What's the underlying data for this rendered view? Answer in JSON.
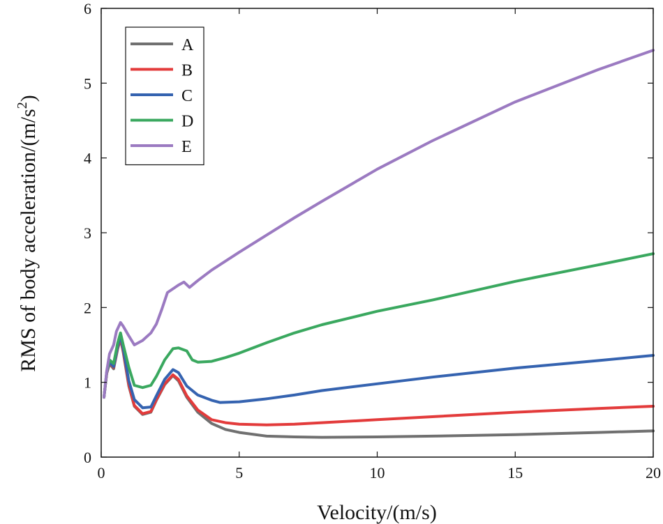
{
  "chart_data": {
    "type": "line",
    "xlabel": "Velocity/(m/s)",
    "ylabel_main": "RMS of body acceleration/(m/s",
    "ylabel_sup": "2",
    "ylabel_end": ")",
    "xlim": [
      0,
      20
    ],
    "ylim": [
      0,
      6
    ],
    "xticks": [
      "0",
      "5",
      "10",
      "15",
      "20"
    ],
    "yticks": [
      "0",
      "1",
      "2",
      "3",
      "4",
      "5",
      "6"
    ],
    "legend_position": "top-left",
    "series": [
      {
        "name": "A",
        "color": "#707070",
        "x": [
          0.1,
          0.2,
          0.3,
          0.45,
          0.6,
          0.7,
          0.8,
          1.0,
          1.2,
          1.5,
          1.8,
          2.0,
          2.3,
          2.6,
          2.8,
          3.1,
          3.5,
          4.0,
          4.5,
          5.0,
          6.0,
          7.0,
          8.0,
          10.0,
          12.0,
          15.0,
          18.0,
          20.0
        ],
        "y": [
          0.8,
          1.12,
          1.25,
          1.18,
          1.45,
          1.58,
          1.4,
          0.95,
          0.68,
          0.57,
          0.6,
          0.76,
          0.97,
          1.09,
          1.02,
          0.8,
          0.6,
          0.45,
          0.37,
          0.33,
          0.28,
          0.27,
          0.265,
          0.27,
          0.28,
          0.3,
          0.33,
          0.35
        ]
      },
      {
        "name": "B",
        "color": "#e33b3b",
        "x": [
          0.1,
          0.2,
          0.3,
          0.45,
          0.6,
          0.7,
          0.8,
          1.0,
          1.2,
          1.5,
          1.8,
          2.0,
          2.3,
          2.6,
          2.8,
          3.1,
          3.5,
          4.0,
          4.5,
          5.0,
          6.0,
          7.0,
          8.0,
          10.0,
          12.0,
          15.0,
          18.0,
          20.0
        ],
        "y": [
          0.8,
          1.12,
          1.26,
          1.2,
          1.47,
          1.6,
          1.42,
          0.97,
          0.69,
          0.58,
          0.61,
          0.77,
          0.98,
          1.1,
          1.04,
          0.82,
          0.63,
          0.5,
          0.46,
          0.44,
          0.43,
          0.44,
          0.46,
          0.5,
          0.54,
          0.6,
          0.65,
          0.68
        ]
      },
      {
        "name": "C",
        "color": "#3563b0",
        "x": [
          0.1,
          0.2,
          0.3,
          0.45,
          0.6,
          0.7,
          0.8,
          1.0,
          1.2,
          1.5,
          1.8,
          2.0,
          2.3,
          2.6,
          2.8,
          3.1,
          3.5,
          4.0,
          4.3,
          5.0,
          6.0,
          7.0,
          8.0,
          10.0,
          12.0,
          15.0,
          18.0,
          20.0
        ],
        "y": [
          0.8,
          1.13,
          1.27,
          1.21,
          1.49,
          1.62,
          1.45,
          1.02,
          0.77,
          0.66,
          0.67,
          0.82,
          1.04,
          1.17,
          1.13,
          0.95,
          0.83,
          0.76,
          0.73,
          0.74,
          0.78,
          0.83,
          0.89,
          0.98,
          1.07,
          1.19,
          1.29,
          1.36
        ]
      },
      {
        "name": "D",
        "color": "#3aa85f",
        "x": [
          0.1,
          0.2,
          0.3,
          0.45,
          0.6,
          0.7,
          0.8,
          1.0,
          1.2,
          1.5,
          1.8,
          2.0,
          2.3,
          2.6,
          2.8,
          3.1,
          3.3,
          3.5,
          4.0,
          4.5,
          5.0,
          6.0,
          7.0,
          8.0,
          10.0,
          12.0,
          15.0,
          18.0,
          20.0
        ],
        "y": [
          0.8,
          1.14,
          1.3,
          1.25,
          1.53,
          1.66,
          1.5,
          1.2,
          0.96,
          0.93,
          0.96,
          1.08,
          1.3,
          1.45,
          1.46,
          1.42,
          1.3,
          1.27,
          1.28,
          1.33,
          1.39,
          1.53,
          1.66,
          1.77,
          1.95,
          2.1,
          2.35,
          2.57,
          2.72
        ]
      },
      {
        "name": "E",
        "color": "#9b7ac1",
        "x": [
          0.1,
          0.2,
          0.3,
          0.45,
          0.55,
          0.7,
          0.8,
          1.0,
          1.2,
          1.5,
          1.8,
          2.0,
          2.2,
          2.4,
          2.6,
          2.8,
          3.0,
          3.2,
          3.5,
          4.0,
          4.5,
          5.0,
          6.0,
          7.0,
          8.0,
          10.0,
          12.0,
          15.0,
          18.0,
          20.0
        ],
        "y": [
          0.8,
          1.15,
          1.38,
          1.5,
          1.68,
          1.8,
          1.75,
          1.62,
          1.5,
          1.56,
          1.66,
          1.78,
          1.98,
          2.2,
          2.25,
          2.3,
          2.34,
          2.27,
          2.36,
          2.5,
          2.62,
          2.74,
          2.97,
          3.2,
          3.42,
          3.85,
          4.23,
          4.75,
          5.18,
          5.44
        ]
      }
    ]
  }
}
